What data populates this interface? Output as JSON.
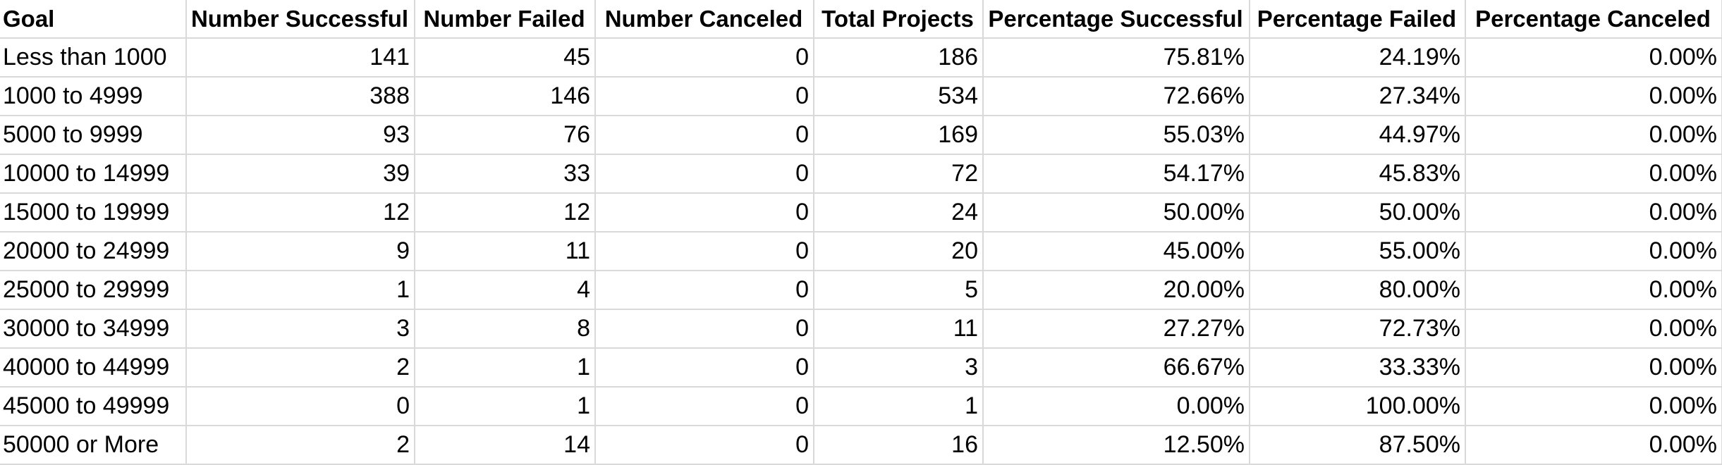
{
  "table": {
    "headers": [
      "Goal",
      "Number Successful",
      "Number Failed",
      "Number Canceled",
      "Total Projects",
      "Percentage Successful",
      "Percentage Failed",
      "Percentage Canceled"
    ],
    "rows": [
      [
        "Less than 1000",
        "141",
        "45",
        "0",
        "186",
        "75.81%",
        "24.19%",
        "0.00%"
      ],
      [
        "1000 to 4999",
        "388",
        "146",
        "0",
        "534",
        "72.66%",
        "27.34%",
        "0.00%"
      ],
      [
        "5000 to 9999",
        "93",
        "76",
        "0",
        "169",
        "55.03%",
        "44.97%",
        "0.00%"
      ],
      [
        "10000 to 14999",
        "39",
        "33",
        "0",
        "72",
        "54.17%",
        "45.83%",
        "0.00%"
      ],
      [
        "15000 to 19999",
        "12",
        "12",
        "0",
        "24",
        "50.00%",
        "50.00%",
        "0.00%"
      ],
      [
        "20000 to 24999",
        "9",
        "11",
        "0",
        "20",
        "45.00%",
        "55.00%",
        "0.00%"
      ],
      [
        "25000 to 29999",
        "1",
        "4",
        "0",
        "5",
        "20.00%",
        "80.00%",
        "0.00%"
      ],
      [
        "30000 to 34999",
        "3",
        "8",
        "0",
        "11",
        "27.27%",
        "72.73%",
        "0.00%"
      ],
      [
        "40000 to 44999",
        "2",
        "1",
        "0",
        "3",
        "66.67%",
        "33.33%",
        "0.00%"
      ],
      [
        "45000 to 49999",
        "0",
        "1",
        "0",
        "1",
        "0.00%",
        "100.00%",
        "0.00%"
      ],
      [
        "50000 or More",
        "2",
        "14",
        "0",
        "16",
        "12.50%",
        "87.50%",
        "0.00%"
      ]
    ]
  },
  "colors": {
    "gridline": "#d9d9d9",
    "background": "#ffffff",
    "text": "#000000"
  }
}
